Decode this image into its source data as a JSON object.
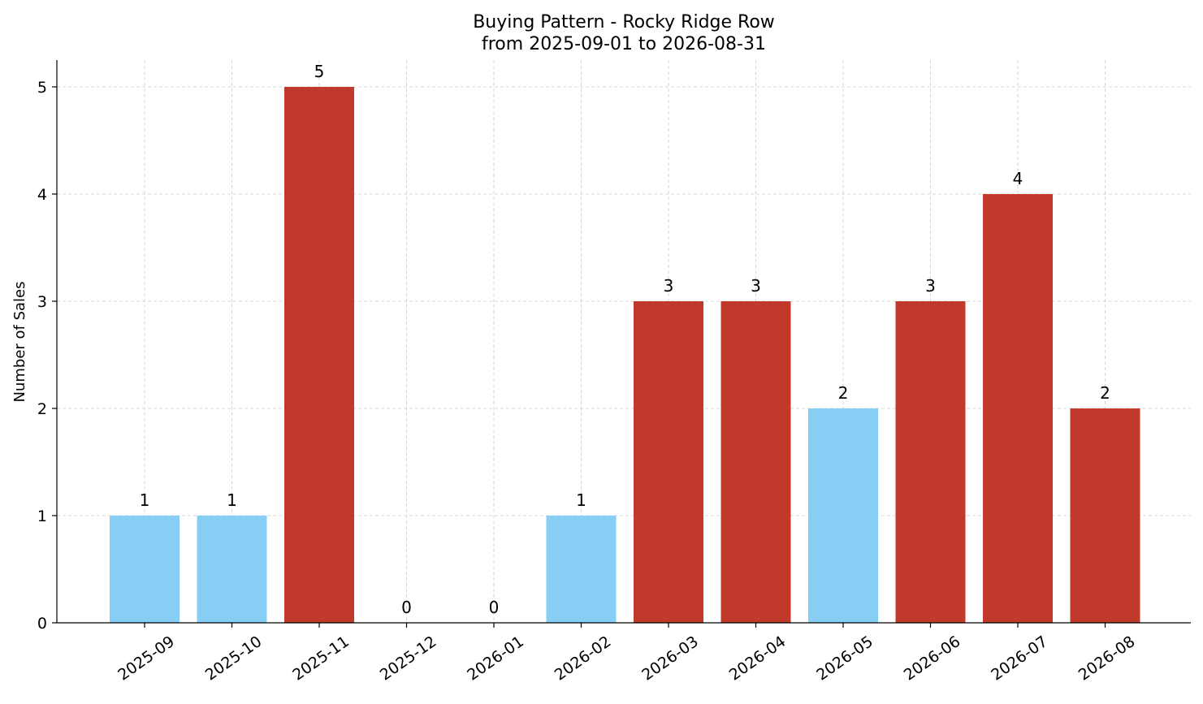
{
  "chart_data": {
    "type": "bar",
    "title": "Buying Pattern - Rocky Ridge Row",
    "subtitle": "from 2025-09-01 to 2026-08-31",
    "xlabel": "",
    "ylabel": "Number of Sales",
    "categories": [
      "2025-09",
      "2025-10",
      "2025-11",
      "2025-12",
      "2026-01",
      "2026-02",
      "2026-03",
      "2026-04",
      "2026-05",
      "2026-06",
      "2026-07",
      "2026-08"
    ],
    "values": [
      1,
      1,
      5,
      0,
      0,
      1,
      3,
      3,
      2,
      3,
      4,
      2
    ],
    "bar_colors": [
      "#87CEF5",
      "#87CEF5",
      "#C0392B",
      "#87CEF5",
      "#87CEF5",
      "#87CEF5",
      "#C0392B",
      "#C0392B",
      "#87CEF5",
      "#C0392B",
      "#C0392B",
      "#C0392B"
    ],
    "data_labels": [
      "1",
      "1",
      "5",
      "0",
      "0",
      "1",
      "3",
      "3",
      "2",
      "3",
      "4",
      "2"
    ],
    "ylim": [
      0,
      5.25
    ],
    "yticks": [
      0,
      1,
      2,
      3,
      4,
      5
    ],
    "grid": true,
    "legend": "none"
  }
}
